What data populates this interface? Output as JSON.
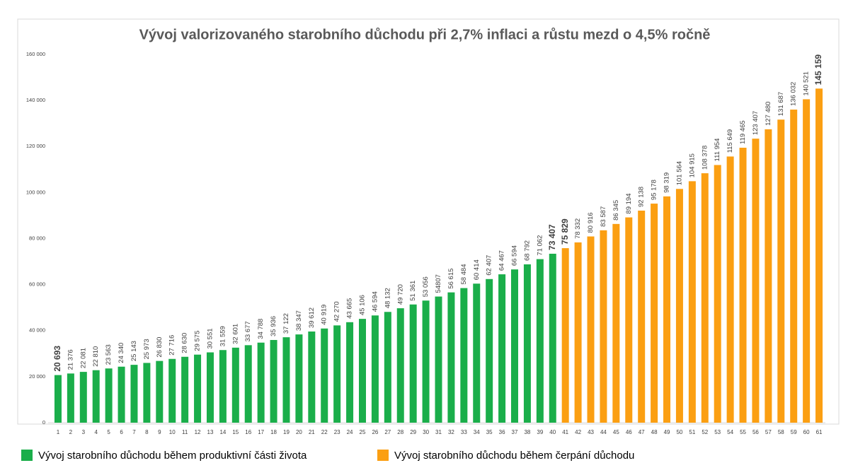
{
  "chart_data": {
    "type": "bar",
    "title": "Vývoj valorizovaného starobního důchodu při 2,7% inflaci a růstu mezd o 4,5% ročně",
    "categories": [
      "1",
      "2",
      "3",
      "4",
      "5",
      "6",
      "7",
      "8",
      "9",
      "10",
      "11",
      "12",
      "13",
      "14",
      "15",
      "16",
      "17",
      "18",
      "19",
      "20",
      "21",
      "22",
      "23",
      "24",
      "25",
      "26",
      "27",
      "28",
      "29",
      "30",
      "31",
      "32",
      "33",
      "34",
      "35",
      "36",
      "37",
      "38",
      "39",
      "40",
      "41",
      "42",
      "43",
      "44",
      "45",
      "46",
      "47",
      "48",
      "49",
      "50",
      "51",
      "52",
      "53",
      "54",
      "55",
      "56",
      "57",
      "58",
      "59",
      "60",
      "61"
    ],
    "series": [
      {
        "name": "Vývoj starobního důchodu během produktivní části života",
        "color": "#1aae4a",
        "values": [
          20693,
          21376,
          22081,
          22810,
          23563,
          24340,
          25143,
          25973,
          26830,
          27716,
          28630,
          29575,
          30551,
          31559,
          32601,
          33677,
          34788,
          35936,
          37122,
          38347,
          39612,
          40919,
          42270,
          43665,
          45106,
          46594,
          48132,
          49720,
          51361,
          53056,
          54807,
          56615,
          58484,
          60414,
          62407,
          64467,
          66594,
          68792,
          71062,
          73407,
          null,
          null,
          null,
          null,
          null,
          null,
          null,
          null,
          null,
          null,
          null,
          null,
          null,
          null,
          null,
          null,
          null,
          null,
          null,
          null,
          null
        ],
        "value_labels": [
          "20 693",
          "21 376",
          "22 081",
          "22 810",
          "23 563",
          "24 340",
          "25 143",
          "25 973",
          "26 830",
          "27 716",
          "28 630",
          "29 575",
          "30 551",
          "31 559",
          "32 601",
          "33 677",
          "34 788",
          "35 936",
          "37 122",
          "38 347",
          "39 612",
          "40 919",
          "42 270",
          "43 665",
          "45 106",
          "46 594",
          "48 132",
          "49 720",
          "51 361",
          "53 056",
          "54807",
          "56 615",
          "58 484",
          "60 414",
          "62 407",
          "64 467",
          "66 594",
          "68 792",
          "71 062",
          "73 407",
          null,
          null,
          null,
          null,
          null,
          null,
          null,
          null,
          null,
          null,
          null,
          null,
          null,
          null,
          null,
          null,
          null,
          null,
          null,
          null,
          null
        ]
      },
      {
        "name": "Vývoj starobního důchodu během čerpání důchodu",
        "color": "#fb9f12",
        "values": [
          null,
          null,
          null,
          null,
          null,
          null,
          null,
          null,
          null,
          null,
          null,
          null,
          null,
          null,
          null,
          null,
          null,
          null,
          null,
          null,
          null,
          null,
          null,
          null,
          null,
          null,
          null,
          null,
          null,
          null,
          null,
          null,
          null,
          null,
          null,
          null,
          null,
          null,
          null,
          null,
          75829,
          78332,
          80916,
          83587,
          86345,
          89194,
          92138,
          95178,
          98319,
          101564,
          104915,
          108378,
          111954,
          115649,
          119465,
          123407,
          127480,
          131687,
          136032,
          140521,
          145159
        ],
        "value_labels": [
          null,
          null,
          null,
          null,
          null,
          null,
          null,
          null,
          null,
          null,
          null,
          null,
          null,
          null,
          null,
          null,
          null,
          null,
          null,
          null,
          null,
          null,
          null,
          null,
          null,
          null,
          null,
          null,
          null,
          null,
          null,
          null,
          null,
          null,
          null,
          null,
          null,
          null,
          null,
          null,
          "75 829",
          "78 332",
          "80 916",
          "83 587",
          "86 345",
          "89 194",
          "92 138",
          "95 178",
          "98 319",
          "101 564",
          "104 915",
          "108 378",
          "111 954",
          "115 649",
          "119 465",
          "123 407",
          "127 480",
          "131 687",
          "136 032",
          "140 521",
          "145 159"
        ]
      }
    ],
    "ylim": [
      0,
      160000
    ],
    "yticks": [
      0,
      {
        "value": 20000,
        "label": "20 000"
      },
      {
        "value": 40000,
        "label": "40 000"
      },
      {
        "value": 60000,
        "label": "60 000"
      },
      {
        "value": 80000,
        "label": "80 000"
      },
      {
        "value": 100000,
        "label": "100 000"
      },
      {
        "value": 120000,
        "label": "120 000"
      },
      {
        "value": 140000,
        "label": "140 000"
      },
      {
        "value": 160000,
        "label": "160 000"
      }
    ],
    "grid": false
  }
}
